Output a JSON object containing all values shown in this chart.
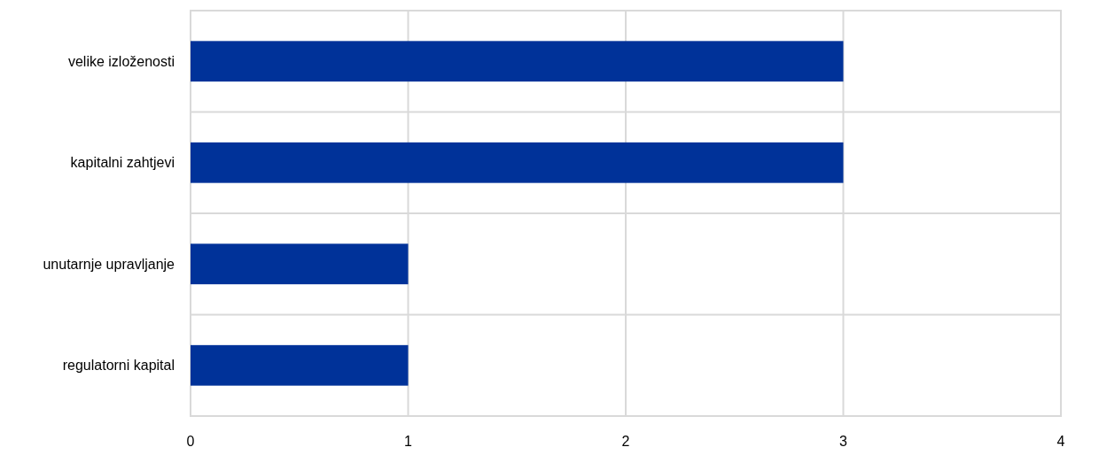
{
  "chart_data": {
    "type": "bar",
    "orientation": "horizontal",
    "categories": [
      "velike izloženosti",
      "kapitalni zahtjevi",
      "unutarnje upravljanje",
      "regulatorni kapital"
    ],
    "values": [
      3,
      3,
      1,
      1
    ],
    "color": "#003299",
    "xlim": [
      0,
      4
    ],
    "xticks": [
      0,
      1,
      2,
      3,
      4
    ],
    "grid": true
  }
}
